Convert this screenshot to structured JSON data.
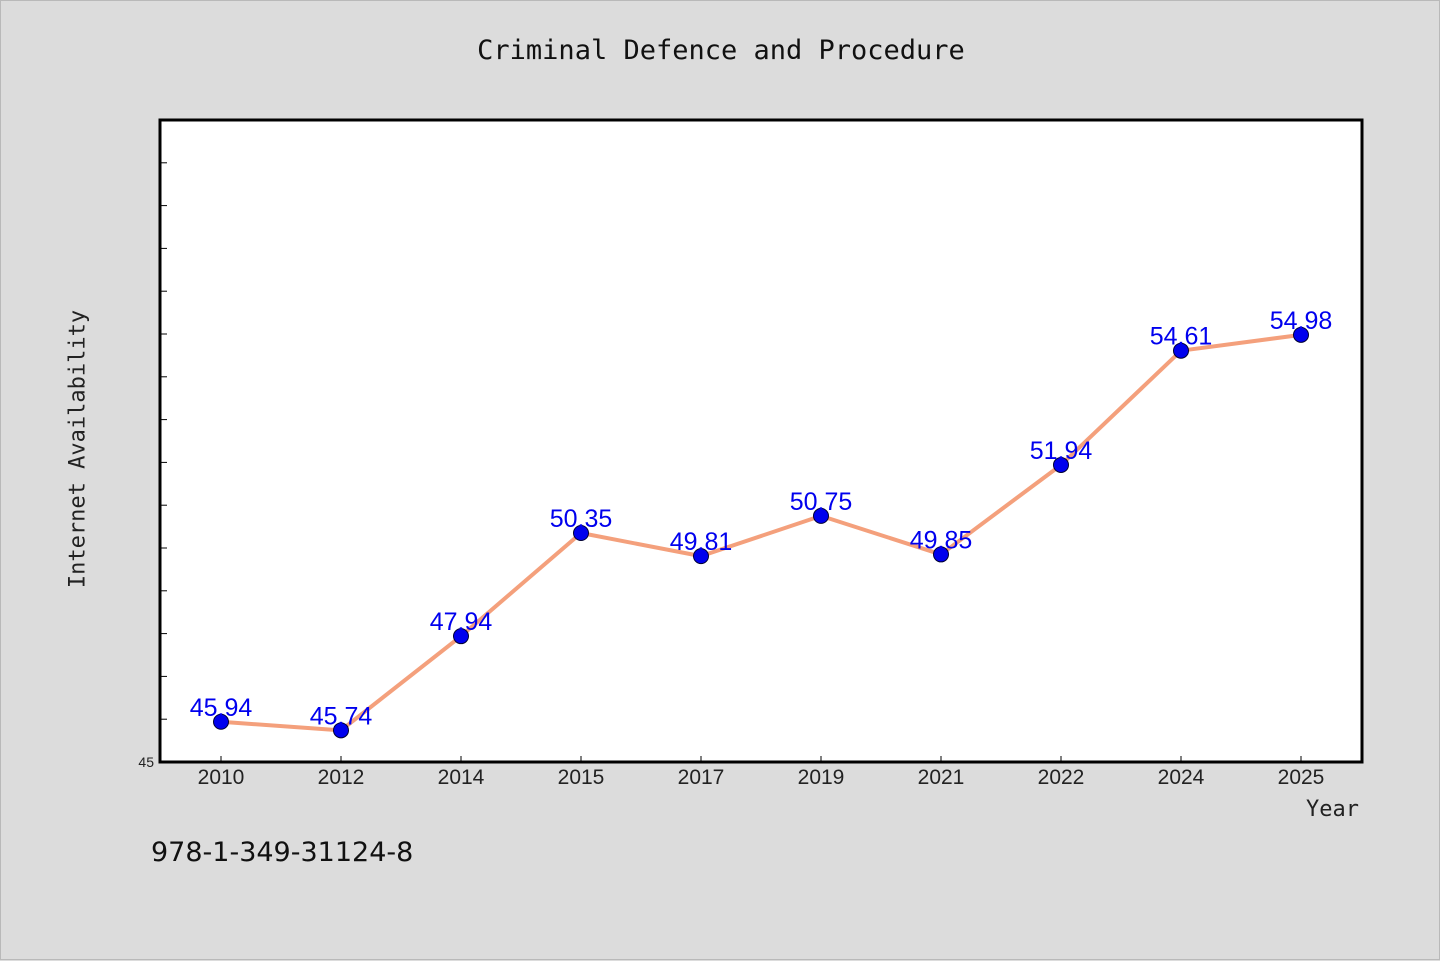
{
  "chart_data": {
    "type": "line",
    "title": "Criminal Defence and Procedure",
    "xlabel": "Year",
    "ylabel": "Internet Availability",
    "categories": [
      "2010",
      "2012",
      "2014",
      "2015",
      "2017",
      "2019",
      "2021",
      "2022",
      "2024",
      "2025"
    ],
    "series": [
      {
        "values": [
          45.94,
          45.74,
          47.94,
          50.35,
          49.81,
          50.75,
          49.85,
          51.94,
          54.61,
          54.98
        ],
        "labels": [
          "45.94",
          "45.74",
          "47.94",
          "50.35",
          "49.81",
          "50.75",
          "49.85",
          "51.94",
          "54.61",
          "54.98"
        ]
      }
    ],
    "y_tick_labels": [
      "45"
    ],
    "ylim": [
      45,
      60
    ],
    "grid": false,
    "colors": {
      "line": "#f4a07c",
      "marker": "#0000ee",
      "data_label": "#0000ee"
    }
  },
  "footer": {
    "isbn": "978-1-349-31124-8"
  }
}
